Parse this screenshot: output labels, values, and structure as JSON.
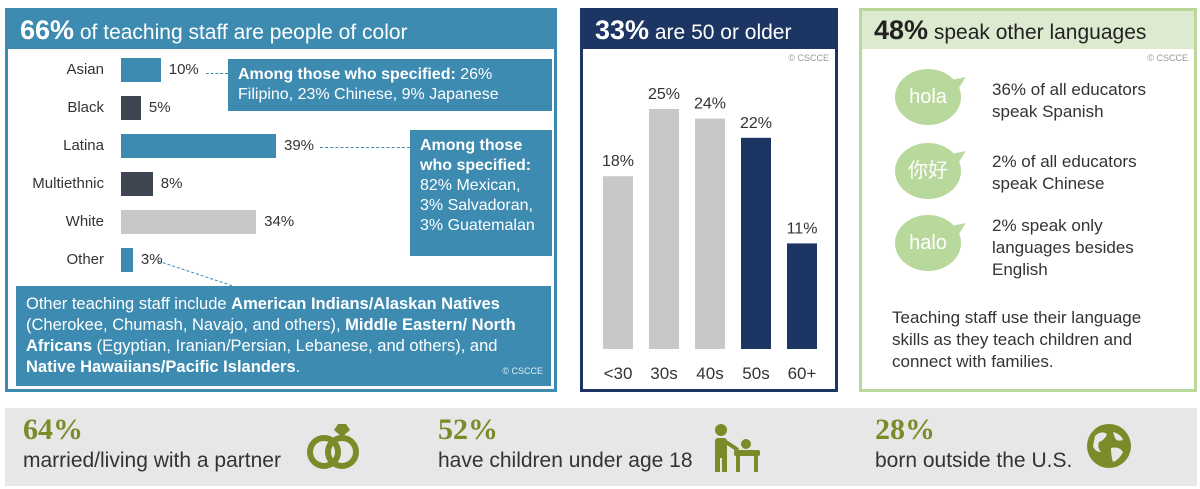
{
  "panel1": {
    "title_pct": "66%",
    "title_rest": " of teaching staff are people of color",
    "copyright": "© CSCCE",
    "color_primary": "#3d8bb1",
    "color_dark": "#3d4650",
    "color_light": "#c8c8c8",
    "callout_asian_bold": "Among those who specified:",
    "callout_asian_rest": " 26% Filipino, 23% Chinese, 9% Japanese",
    "callout_latina_bold": "Among those who specified:",
    "callout_latina_rest": "82% Mexican, 3% Salvadoran, 3% Guatemalan",
    "other_box": {
      "t1": "Other teaching staff include ",
      "b1": "American Indians/Alaskan Natives",
      "t2": " (Cherokee, Chumash, Navajo, and others), ",
      "b2": "Middle Eastern/ North Africans",
      "t3": " (Egyptian, Iranian/Persian, Lebanese, and others), and ",
      "b3": "Native Hawaiians/Pacific Islanders",
      "t4": "."
    }
  },
  "panel2": {
    "title_pct": "33%",
    "title_rest": " are 50 or older",
    "copyright": "© CSCCE"
  },
  "panel3": {
    "title_pct": "48%",
    "title_rest": " speak other languages",
    "copyright": "© CSCCE",
    "items": [
      {
        "bubble": "hola",
        "text": "36% of all educators speak Spanish"
      },
      {
        "bubble": "你好",
        "text": "2% of all educators speak Chinese"
      },
      {
        "bubble": "halo",
        "text": "2% speak only languages besides English"
      }
    ],
    "footer": "Teaching staff use their language skills as they teach children and connect with families."
  },
  "strip": [
    {
      "pct": "64%",
      "desc": "married/living with a partner",
      "icon": "rings-icon"
    },
    {
      "pct": "52%",
      "desc": "have children under age 18",
      "icon": "parent-child-icon"
    },
    {
      "pct": "28%",
      "desc": "born outside the U.S.",
      "icon": "globe-icon"
    }
  ],
  "chart_data": [
    {
      "type": "bar",
      "orientation": "horizontal",
      "categories": [
        "Asian",
        "Black",
        "Latina",
        "Multiethnic",
        "White",
        "Other"
      ],
      "values": [
        10,
        5,
        39,
        8,
        34,
        3
      ],
      "value_labels": [
        "10%",
        "5%",
        "39%",
        "8%",
        "34%",
        "3%"
      ],
      "bar_colors": [
        "#3d8bb1",
        "#3d4650",
        "#3d8bb1",
        "#3d4650",
        "#c8c8c8",
        "#3d8bb1"
      ],
      "xlim": [
        0,
        40
      ],
      "grid": false
    },
    {
      "type": "bar",
      "orientation": "vertical",
      "categories": [
        "<30",
        "30s",
        "40s",
        "50s",
        "60+"
      ],
      "values": [
        18,
        25,
        24,
        22,
        11
      ],
      "value_labels": [
        "18%",
        "25%",
        "24%",
        "22%",
        "11%"
      ],
      "bar_colors": [
        "#c8c8c8",
        "#c8c8c8",
        "#c8c8c8",
        "#1c3563",
        "#1c3563"
      ],
      "ylim": [
        0,
        25
      ],
      "grid": false
    }
  ]
}
